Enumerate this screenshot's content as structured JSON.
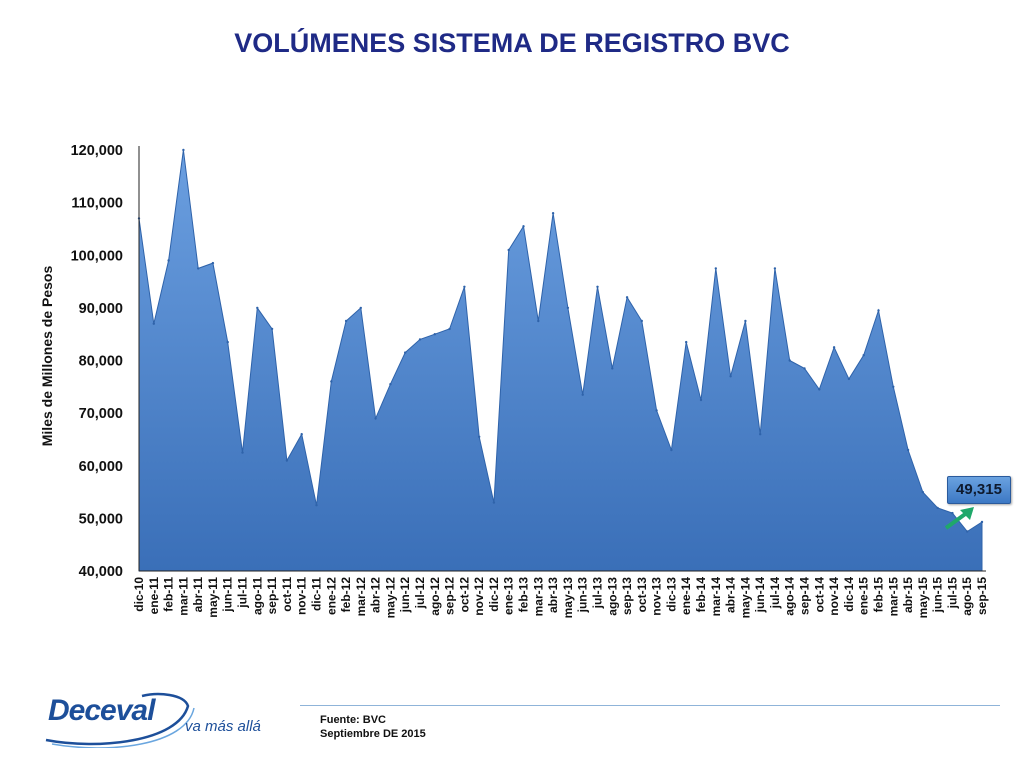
{
  "title": "VOLÚMENES SISTEMA DE REGISTRO BVC",
  "chart_data": {
    "type": "area",
    "ylabel": "Miles de Millones de Pesos",
    "xlabel": "",
    "ylim": [
      40000,
      120000
    ],
    "yticks": [
      "40,000",
      "50,000",
      "60,000",
      "70,000",
      "80,000",
      "90,000",
      "100,000",
      "110,000",
      "120,000"
    ],
    "grid": false,
    "color": "#4a86d0",
    "categories": [
      "dic-10",
      "ene-11",
      "feb-11",
      "mar-11",
      "abr-11",
      "may-11",
      "jun-11",
      "jul-11",
      "ago-11",
      "sep-11",
      "oct-11",
      "nov-11",
      "dic-11",
      "ene-12",
      "feb-12",
      "mar-12",
      "abr-12",
      "may-12",
      "jun-12",
      "jul-12",
      "ago-12",
      "sep-12",
      "oct-12",
      "nov-12",
      "dic-12",
      "ene-13",
      "feb-13",
      "mar-13",
      "abr-13",
      "may-13",
      "jun-13",
      "jul-13",
      "ago-13",
      "sep-13",
      "oct-13",
      "nov-13",
      "dic-13",
      "ene-14",
      "feb-14",
      "mar-14",
      "abr-14",
      "may-14",
      "jun-14",
      "jul-14",
      "ago-14",
      "sep-14",
      "oct-14",
      "nov-14",
      "dic-14",
      "ene-15",
      "feb-15",
      "mar-15",
      "abr-15",
      "may-15",
      "jun-15",
      "jul-15",
      "ago-15",
      "sep-15"
    ],
    "values": [
      107000,
      87000,
      99000,
      120000,
      97500,
      98500,
      83500,
      62500,
      90000,
      86000,
      61000,
      66000,
      52500,
      76000,
      87500,
      90000,
      69000,
      75500,
      81500,
      84000,
      85000,
      86000,
      94000,
      65500,
      53000,
      101000,
      105500,
      87500,
      108000,
      90000,
      73500,
      94000,
      78500,
      92000,
      87500,
      70500,
      63000,
      83500,
      72500,
      97500,
      77000,
      87500,
      66000,
      97500,
      80000,
      78500,
      74500,
      82500,
      76500,
      81000,
      89500,
      75000,
      63000,
      55000,
      52000,
      51000,
      47500,
      49315
    ],
    "annotation": {
      "label": "49,315",
      "category": "sep-15",
      "value": 49315
    }
  },
  "footer": {
    "logo_text": "Deceval",
    "tagline": "va más allá",
    "source": "Fuente: BVC",
    "date": "Septiembre DE 2015"
  }
}
